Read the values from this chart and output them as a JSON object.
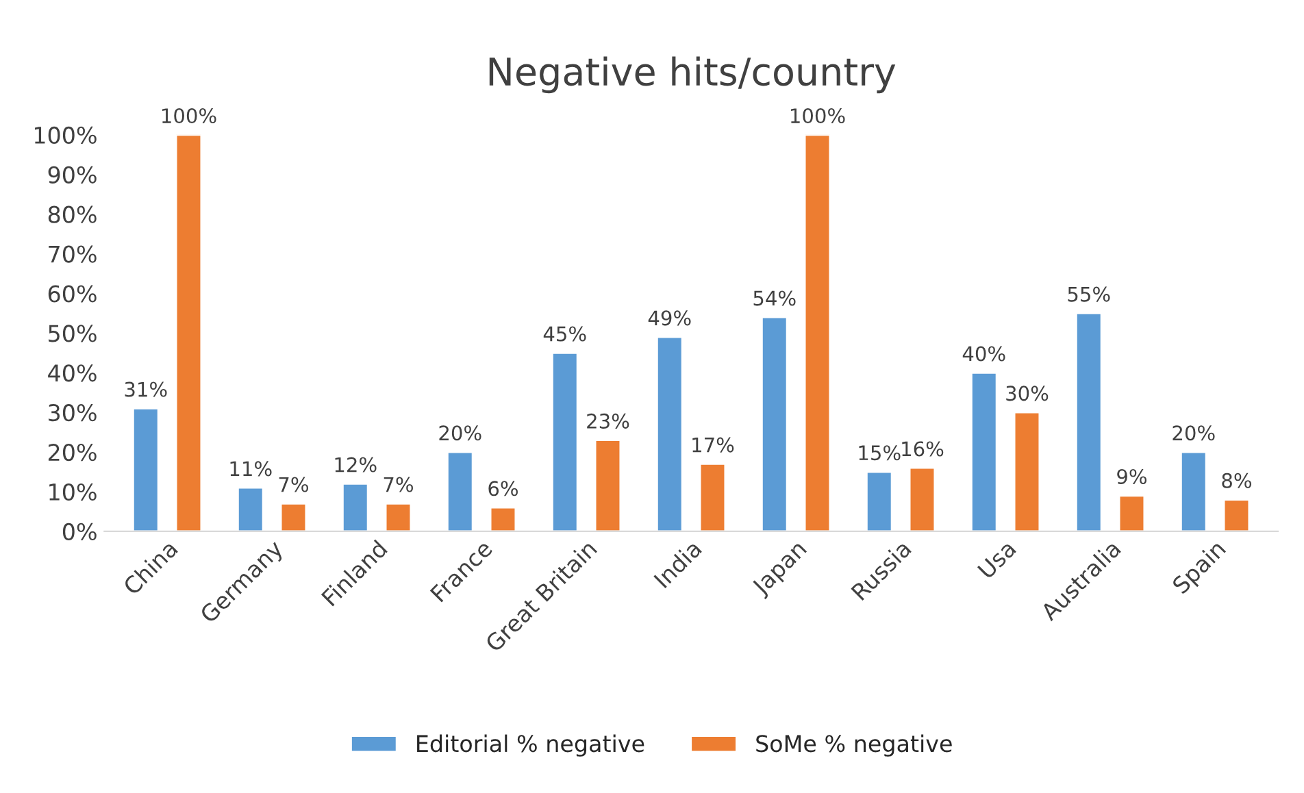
{
  "chart_data": {
    "type": "bar",
    "title": "Negative hits/country",
    "categories": [
      "China",
      "Germany",
      "Finland",
      "France",
      "Great Britain",
      "India",
      "Japan",
      "Russia",
      "Usa",
      "Australia",
      "Spain"
    ],
    "series": [
      {
        "name": "Editorial % negative",
        "color": "#5b9bd5",
        "values": [
          31,
          11,
          12,
          20,
          45,
          49,
          54,
          15,
          40,
          55,
          20
        ],
        "value_labels": [
          "31%",
          "11%",
          "12%",
          "20%",
          "45%",
          "49%",
          "54%",
          "15%",
          "40%",
          "55%",
          "20%"
        ]
      },
      {
        "name": "SoMe % negative",
        "color": "#ed7d31",
        "values": [
          100,
          7,
          7,
          6,
          23,
          17,
          100,
          16,
          30,
          9,
          8
        ],
        "value_labels": [
          "100%",
          "7%",
          "7%",
          "6%",
          "23%",
          "17%",
          "100%",
          "16%",
          "30%",
          "9%",
          "8%"
        ]
      }
    ],
    "ylim": [
      0,
      100
    ],
    "yticks": [
      {
        "value": 0,
        "label": "0%"
      },
      {
        "value": 10,
        "label": "10%"
      },
      {
        "value": 20,
        "label": "20%"
      },
      {
        "value": 30,
        "label": "30%"
      },
      {
        "value": 40,
        "label": "40%"
      },
      {
        "value": 50,
        "label": "50%"
      },
      {
        "value": 60,
        "label": "60%"
      },
      {
        "value": 70,
        "label": "70%"
      },
      {
        "value": 80,
        "label": "80%"
      },
      {
        "value": 90,
        "label": "90%"
      },
      {
        "value": 100,
        "label": "100%"
      }
    ],
    "grid": false,
    "legend": "bottom"
  }
}
